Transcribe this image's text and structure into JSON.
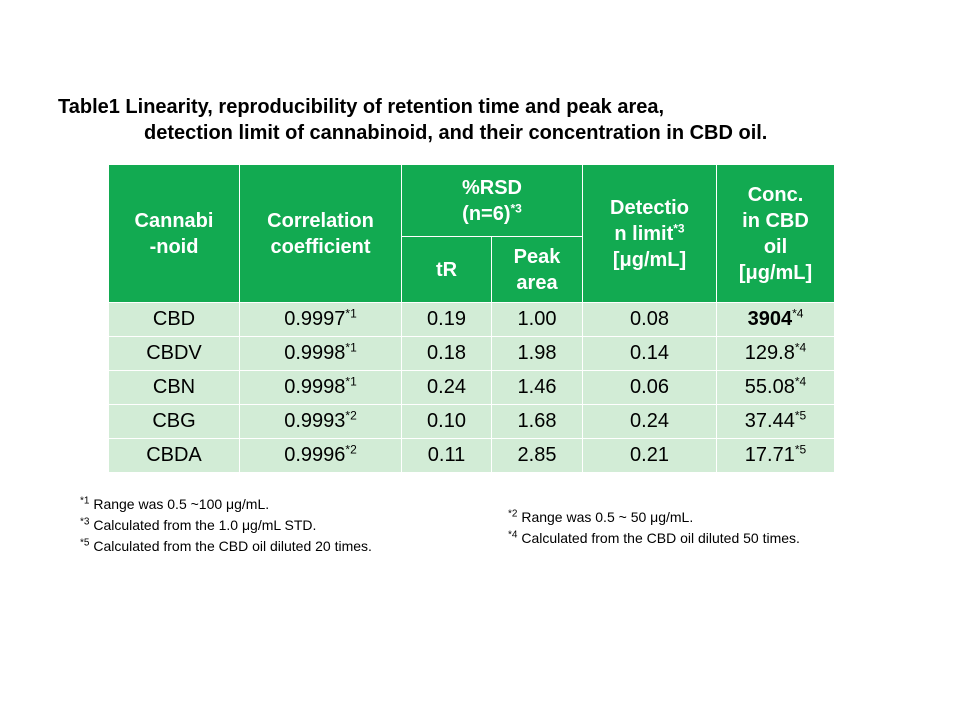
{
  "title": {
    "line1": "Table1  Linearity, reproducibility of retention time and peak area,",
    "line2": "detection limit of cannabinoid, and their concentration in CBD oil."
  },
  "headers": {
    "cannabinoid": [
      "Cannabi",
      "-noid"
    ],
    "correlation": [
      "Correlation",
      "coefficient"
    ],
    "rsd": [
      "%RSD",
      "(n=6)"
    ],
    "rsd_mark": "*3",
    "tr": "tR",
    "peak_area": [
      "Peak",
      "area"
    ],
    "detection_limit": [
      "Detectio",
      "n limit",
      "[μg/mL]"
    ],
    "detection_mark": "*3",
    "conc": [
      "Conc.",
      "in CBD",
      "oil",
      "[μg/mL]"
    ]
  },
  "rows": [
    {
      "name": "CBD",
      "corr": "0.9997",
      "corr_mark": "*1",
      "tr": "0.19",
      "area": "1.00",
      "dl": "0.08",
      "conc": "3904",
      "conc_mark": "*4"
    },
    {
      "name": "CBDV",
      "corr": "0.9998",
      "corr_mark": "*1",
      "tr": "0.18",
      "area": "1.98",
      "dl": "0.14",
      "conc": "129.8",
      "conc_mark": "*4"
    },
    {
      "name": "CBN",
      "corr": "0.9998",
      "corr_mark": "*1",
      "tr": "0.24",
      "area": "1.46",
      "dl": "0.06",
      "conc": "55.08",
      "conc_mark": "*4"
    },
    {
      "name": "CBG",
      "corr": "0.9993",
      "corr_mark": "*2",
      "tr": "0.10",
      "area": "1.68",
      "dl": "0.24",
      "conc": "37.44",
      "conc_mark": "*5"
    },
    {
      "name": "CBDA",
      "corr": "0.9996",
      "corr_mark": "*2",
      "tr": "0.11",
      "area": "2.85",
      "dl": "0.21",
      "conc": "17.71",
      "conc_mark": "*5"
    }
  ],
  "notes_left": [
    {
      "mark": "*1",
      "text": " Range was 0.5 ~100 μg/mL."
    },
    {
      "mark": "*3",
      "text": " Calculated from the 1.0 μg/mL STD."
    },
    {
      "mark": "*5",
      "text": " Calculated from the CBD oil diluted 20 times."
    }
  ],
  "notes_right": [
    {
      "mark": "*2",
      "text": " Range was 0.5 ~ 50 μg/mL."
    },
    {
      "mark": "*4",
      "text": " Calculated from the CBD oil diluted 50 times."
    }
  ],
  "colors": {
    "header_green": "#12aa51",
    "cell_green": "#d2ecd6"
  }
}
